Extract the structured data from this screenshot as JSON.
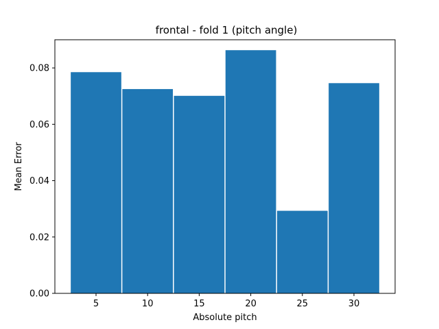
{
  "chart_data": {
    "type": "bar",
    "title": "frontal - fold 1 (pitch angle)",
    "xlabel": "Absolute pitch",
    "ylabel": "Mean Error",
    "categories": [
      "5",
      "10",
      "15",
      "20",
      "25",
      "30"
    ],
    "x": [
      5,
      10,
      15,
      20,
      25,
      30
    ],
    "values": [
      0.0785,
      0.0725,
      0.0701,
      0.0863,
      0.0293,
      0.0746
    ],
    "bar_width": 4.9,
    "xlim": [
      0,
      35
    ],
    "ylim": [
      0,
      0.09
    ],
    "xticks": [
      5,
      10,
      15,
      20,
      25,
      30
    ],
    "xtick_labels": [
      "5",
      "10",
      "15",
      "20",
      "25",
      "30"
    ],
    "yticks": [
      0.0,
      0.02,
      0.04,
      0.06,
      0.08
    ],
    "ytick_labels": [
      "0.00",
      "0.02",
      "0.04",
      "0.06",
      "0.08"
    ],
    "bar_color": "#1f77b4",
    "grid": false,
    "legend": null
  }
}
